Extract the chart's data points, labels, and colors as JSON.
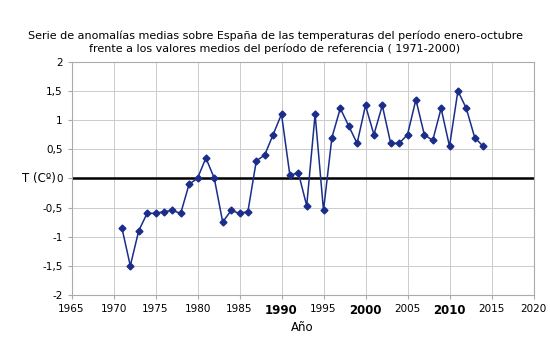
{
  "title_line1": "Serie de anomalías medias sobre España de las temperaturas del período enero-octubre",
  "title_line2": "frente a los valores medios del período de referencia ( 1971-2000)",
  "xlabel": "Año",
  "ylabel": "T (Cº)",
  "xlim": [
    1965,
    2020
  ],
  "ylim": [
    -2,
    2
  ],
  "xticks": [
    1965,
    1970,
    1975,
    1980,
    1985,
    1990,
    1995,
    2000,
    2005,
    2010,
    2015,
    2020
  ],
  "xtick_labels_bold": [
    1990,
    2000,
    2010
  ],
  "yticks": [
    -2,
    -1.5,
    -1,
    -0.5,
    0,
    0.5,
    1,
    1.5,
    2
  ],
  "plot_years": [
    1971,
    1972,
    1973,
    1974,
    1975,
    1976,
    1977,
    1978,
    1979,
    1980,
    1981,
    1982,
    1983,
    1984,
    1985,
    1986,
    1987,
    1988,
    1989,
    1990,
    1991,
    1992,
    1993,
    1994,
    1995,
    1996,
    1997,
    1998,
    1999,
    2000,
    2001,
    2002,
    2003,
    2004,
    2005,
    2006,
    2007,
    2008,
    2009,
    2010,
    2011,
    2012,
    2013,
    2014
  ],
  "plot_values": [
    -0.85,
    -1.5,
    -0.9,
    -0.6,
    -0.6,
    -0.57,
    -0.55,
    -0.6,
    -0.1,
    0.0,
    0.35,
    0.0,
    -0.75,
    -0.55,
    -0.6,
    -0.57,
    0.3,
    0.4,
    0.75,
    1.1,
    0.05,
    0.1,
    -0.47,
    1.1,
    -0.55,
    0.7,
    1.2,
    0.9,
    0.6,
    1.25,
    0.75,
    1.25,
    0.6,
    0.6,
    0.75,
    1.35,
    0.75,
    0.65,
    1.2,
    0.55,
    1.5,
    1.2,
    0.7,
    0.55
  ],
  "line_color": "#1a2d8a",
  "marker": "D",
  "marker_size": 3.5,
  "linewidth": 1.1,
  "background_color": "#ffffff",
  "grid_color": "#cccccc",
  "zero_line_color": "#000000",
  "title_fontsize": 8.0,
  "axis_label_fontsize": 8.5,
  "tick_fontsize": 7.5
}
